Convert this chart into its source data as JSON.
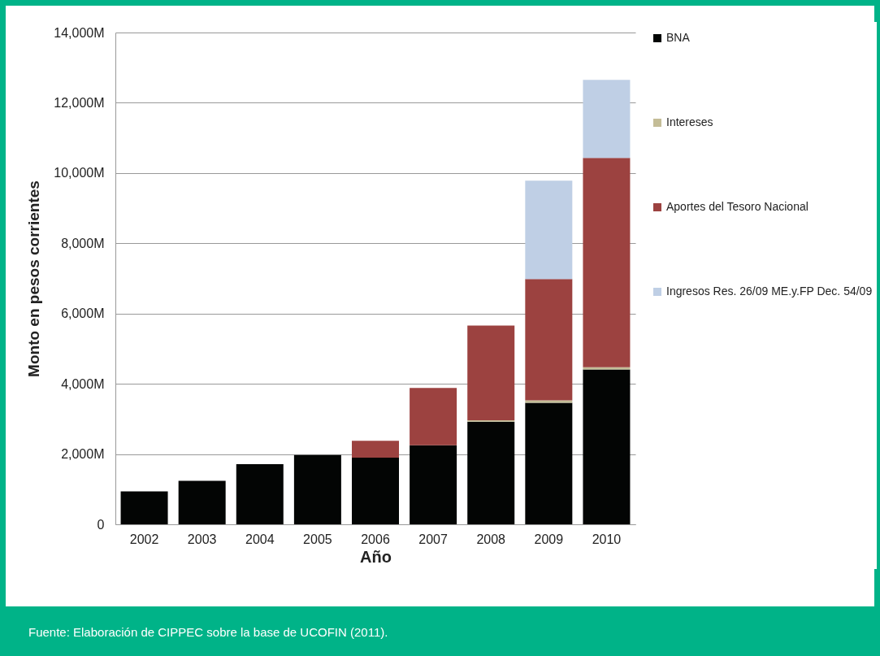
{
  "chart_data": {
    "type": "bar",
    "stacked": true,
    "xlabel": "Año",
    "ylabel": "Monto en pesos corrientes",
    "categories": [
      "2002",
      "2003",
      "2004",
      "2005",
      "2006",
      "2007",
      "2008",
      "2009",
      "2010"
    ],
    "series": [
      {
        "name": "BNA",
        "color": "#030504",
        "values": [
          940,
          1240,
          1710,
          1970,
          1900,
          2250,
          2920,
          3460,
          4410
        ]
      },
      {
        "name": "Intereses",
        "color": "#c4bd97",
        "values": [
          null,
          null,
          null,
          null,
          null,
          null,
          40,
          70,
          60
        ]
      },
      {
        "name": "Aportes del Tesoro Nacional",
        "color": "#9c4240",
        "values": [
          null,
          null,
          null,
          null,
          480,
          1630,
          2700,
          3450,
          5960
        ]
      },
      {
        "name": "Ingresos Res. 26/09 ME.y.FP Dec. 54/09",
        "color": "#bfcfe5",
        "values": [
          null,
          null,
          null,
          null,
          null,
          null,
          null,
          2800,
          2220
        ]
      }
    ],
    "ylim": [
      0,
      14000
    ],
    "yticks": [
      0,
      {
        "value": 2000,
        "label": "2,000M"
      },
      {
        "value": 4000,
        "label": "4,000M"
      },
      {
        "value": 6000,
        "label": "6,000M"
      },
      {
        "value": 8000,
        "label": "8,000M"
      },
      {
        "value": 10000,
        "label": "10,000M"
      },
      {
        "value": 12000,
        "label": "12,000M"
      },
      {
        "value": 14000,
        "label": "14,000M"
      }
    ],
    "grid": "y",
    "legend": "right",
    "annotations": [
      "Fuente: Elaboración de CIPPEC sobre la base de UCOFIN (2011)."
    ]
  }
}
